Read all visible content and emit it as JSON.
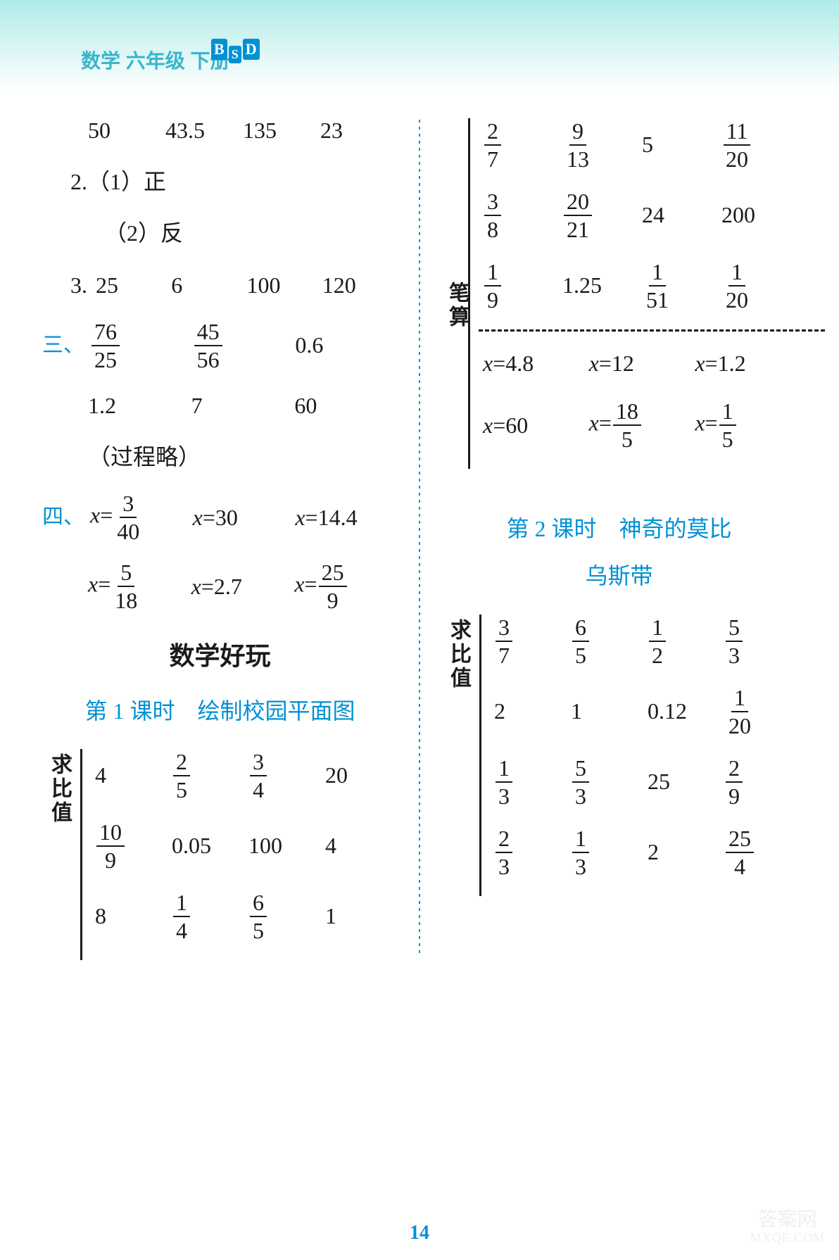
{
  "header": {
    "title": "数学 六年级 下册",
    "badge": [
      "B",
      "S",
      "D"
    ]
  },
  "left": {
    "row1": [
      "50",
      "43.5",
      "135",
      "23"
    ],
    "item2_label": "2.（1）正",
    "item2_sub": "（2）反",
    "item3_label": "3.",
    "item3_vals": [
      "25",
      "6",
      "100",
      "120"
    ],
    "sec3_marker": "三、",
    "sec3_r1": [
      {
        "type": "frac",
        "n": "76",
        "d": "25"
      },
      {
        "type": "frac",
        "n": "45",
        "d": "56"
      },
      {
        "type": "plain",
        "v": "0.6"
      }
    ],
    "sec3_r2": [
      "1.2",
      "7",
      "60"
    ],
    "sec3_note": "（过程略）",
    "sec4_marker": "四、",
    "sec4_r1": [
      {
        "lhs": "x=",
        "rhs": {
          "type": "frac",
          "n": "3",
          "d": "40"
        }
      },
      {
        "lhs": "x=",
        "rhs": {
          "type": "plain",
          "v": "30"
        }
      },
      {
        "lhs": "x=",
        "rhs": {
          "type": "plain",
          "v": "14.4"
        }
      }
    ],
    "sec4_r2": [
      {
        "lhs": "x=",
        "rhs": {
          "type": "frac",
          "n": "5",
          "d": "18"
        }
      },
      {
        "lhs": "x=",
        "rhs": {
          "type": "plain",
          "v": "2.7"
        }
      },
      {
        "lhs": "x=",
        "rhs": {
          "type": "frac",
          "n": "25",
          "d": "9"
        }
      }
    ],
    "section_title": "数学好玩",
    "lesson1_title": "第 1 课时　绘制校园平面图",
    "block1_label": "求比值",
    "block1_rows": [
      [
        {
          "type": "plain",
          "v": "4"
        },
        {
          "type": "frac",
          "n": "2",
          "d": "5"
        },
        {
          "type": "frac",
          "n": "3",
          "d": "4"
        },
        {
          "type": "plain",
          "v": "20"
        }
      ],
      [
        {
          "type": "frac",
          "n": "10",
          "d": "9"
        },
        {
          "type": "plain",
          "v": "0.05"
        },
        {
          "type": "plain",
          "v": "100"
        },
        {
          "type": "plain",
          "v": "4"
        }
      ],
      [
        {
          "type": "plain",
          "v": "8"
        },
        {
          "type": "frac",
          "n": "1",
          "d": "4"
        },
        {
          "type": "frac",
          "n": "6",
          "d": "5"
        },
        {
          "type": "plain",
          "v": "1"
        }
      ]
    ]
  },
  "right": {
    "top_rows": [
      [
        {
          "type": "frac",
          "n": "2",
          "d": "7"
        },
        {
          "type": "frac",
          "n": "9",
          "d": "13"
        },
        {
          "type": "plain",
          "v": "5"
        },
        {
          "type": "frac",
          "n": "11",
          "d": "20"
        }
      ],
      [
        {
          "type": "frac",
          "n": "3",
          "d": "8"
        },
        {
          "type": "frac",
          "n": "20",
          "d": "21"
        },
        {
          "type": "plain",
          "v": "24"
        },
        {
          "type": "plain",
          "v": "200"
        }
      ],
      [
        {
          "type": "frac",
          "n": "1",
          "d": "9"
        },
        {
          "type": "plain",
          "v": "1.25"
        },
        {
          "type": "frac",
          "n": "1",
          "d": "51"
        },
        {
          "type": "frac",
          "n": "1",
          "d": "20"
        }
      ]
    ],
    "calc_label": "笔算",
    "calc_r1": [
      {
        "lhs": "x=",
        "rhs": {
          "type": "plain",
          "v": "4.8"
        }
      },
      {
        "lhs": "x=",
        "rhs": {
          "type": "plain",
          "v": "12"
        }
      },
      {
        "lhs": "x=",
        "rhs": {
          "type": "plain",
          "v": "1.2"
        }
      }
    ],
    "calc_r2": [
      {
        "lhs": "x=",
        "rhs": {
          "type": "plain",
          "v": "60"
        }
      },
      {
        "lhs": "x=",
        "rhs": {
          "type": "frac",
          "n": "18",
          "d": "5"
        }
      },
      {
        "lhs": "x=",
        "rhs": {
          "type": "frac",
          "n": "1",
          "d": "5"
        }
      }
    ],
    "lesson2_title_l1": "第 2 课时　神奇的莫比",
    "lesson2_title_l2": "乌斯带",
    "block2_label": "求比值",
    "block2_rows": [
      [
        {
          "type": "frac",
          "n": "3",
          "d": "7"
        },
        {
          "type": "frac",
          "n": "6",
          "d": "5"
        },
        {
          "type": "frac",
          "n": "1",
          "d": "2"
        },
        {
          "type": "frac",
          "n": "5",
          "d": "3"
        }
      ],
      [
        {
          "type": "plain",
          "v": "2"
        },
        {
          "type": "plain",
          "v": "1"
        },
        {
          "type": "plain",
          "v": "0.12"
        },
        {
          "type": "frac",
          "n": "1",
          "d": "20"
        }
      ],
      [
        {
          "type": "frac",
          "n": "1",
          "d": "3"
        },
        {
          "type": "frac",
          "n": "5",
          "d": "3"
        },
        {
          "type": "plain",
          "v": "25"
        },
        {
          "type": "frac",
          "n": "2",
          "d": "9"
        }
      ],
      [
        {
          "type": "frac",
          "n": "2",
          "d": "3"
        },
        {
          "type": "frac",
          "n": "1",
          "d": "3"
        },
        {
          "type": "plain",
          "v": "2"
        },
        {
          "type": "frac",
          "n": "25",
          "d": "4"
        }
      ]
    ]
  },
  "page_number": "14",
  "watermark": {
    "line1": "答案网",
    "line2": "MXQE.COM"
  }
}
